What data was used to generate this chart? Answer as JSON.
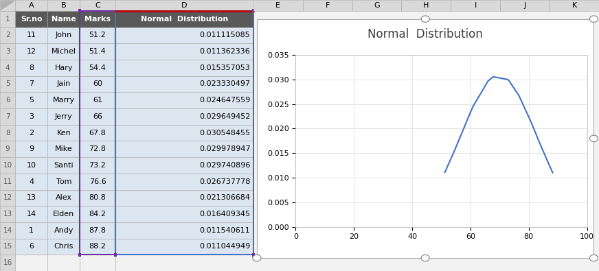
{
  "sr_no": [
    11,
    12,
    8,
    7,
    5,
    3,
    2,
    9,
    10,
    4,
    13,
    14,
    1,
    6
  ],
  "names": [
    "John",
    "Michel",
    "Hary",
    "Jain",
    "Marry",
    "Jerry",
    "Ken",
    "Mike",
    "Santi",
    "Tom",
    "Alex",
    "Elden",
    "Andy",
    "Chris"
  ],
  "marks": [
    51.2,
    51.4,
    54.4,
    60,
    61,
    66,
    67.8,
    72.8,
    73.2,
    76.6,
    80.8,
    84.2,
    87.8,
    88.2
  ],
  "normal_dist": [
    0.011115085,
    0.011362336,
    0.015357053,
    0.023330497,
    0.024647559,
    0.029649452,
    0.030548455,
    0.029978947,
    0.029740896,
    0.026737778,
    0.021306684,
    0.016409345,
    0.011540611,
    0.011044949
  ],
  "title": "Normal  Distribution",
  "xlim": [
    0,
    100
  ],
  "ylim": [
    0,
    0.035
  ],
  "xticks": [
    0,
    20,
    40,
    60,
    80,
    100
  ],
  "yticks": [
    0,
    0.005,
    0.01,
    0.015,
    0.02,
    0.025,
    0.03,
    0.035
  ],
  "line_color": "#4472C4",
  "header_bg": "#595959",
  "header_text": "#FFFFFF",
  "row_bg_light": "#DCE6F1",
  "col_header_bg": "#BFBFBF",
  "col_header_text": "#000000",
  "row_num_bg": "#D9D9D9",
  "row_num_text": "#595959",
  "table_text_color": "#000000",
  "name_text_color": "#000000",
  "grid_color": "#D9D9D9",
  "chart_bg": "#FFFFFF",
  "chart_border": "#AAAAAA",
  "excel_bg": "#F2F2F2",
  "col_letters_bg": "#D9D9D9",
  "title_fontsize": 12,
  "axis_fontsize": 8,
  "handle_color": "#808080",
  "purple_border": "#7030A0",
  "red_border": "#C00000",
  "blue_border": "#4472C4"
}
